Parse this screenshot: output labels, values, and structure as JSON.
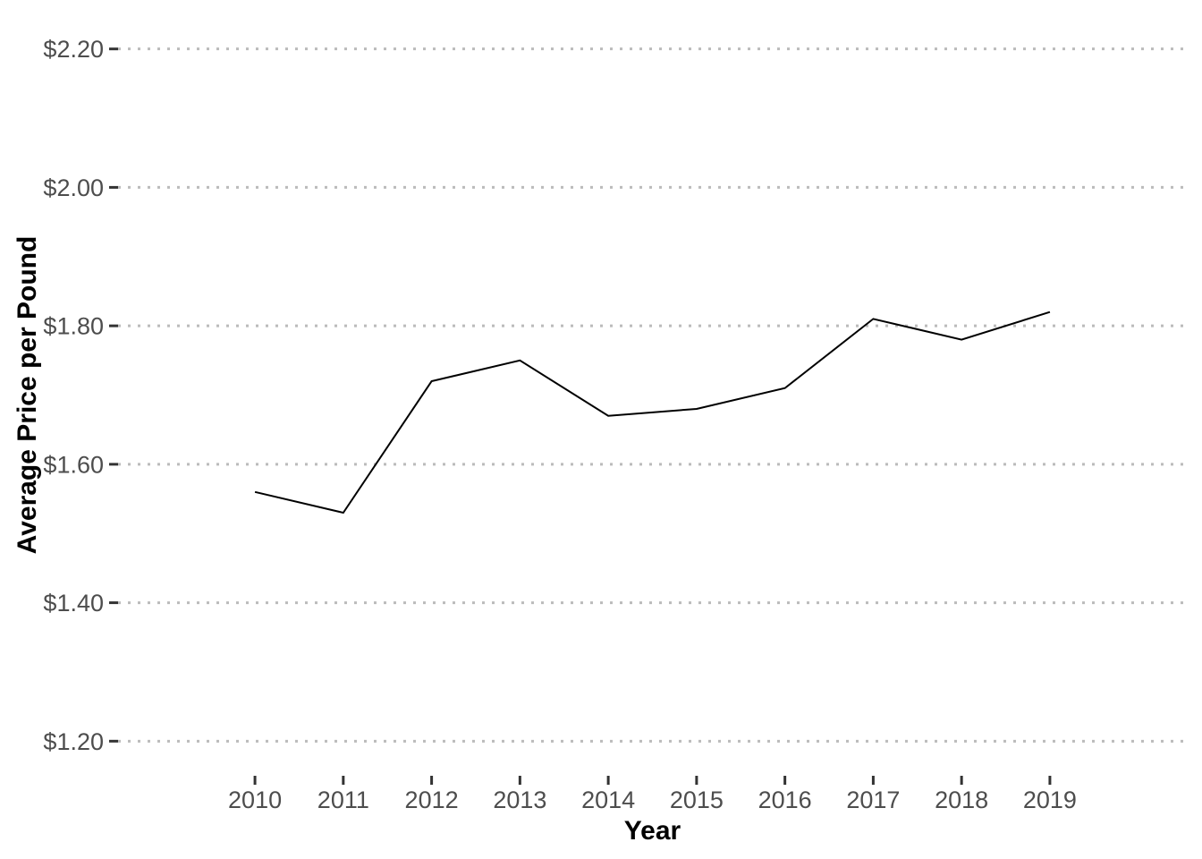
{
  "figure": {
    "background": "#FFFFFF"
  },
  "chart_data": {
    "type": "line",
    "title": "",
    "xlabel": "Year",
    "ylabel": "Average Price per Pound",
    "x": [
      2010,
      2011,
      2012,
      2013,
      2014,
      2015,
      2016,
      2017,
      2018,
      2019
    ],
    "series": [
      {
        "name": "Average Price per Pound",
        "values": [
          1.56,
          1.53,
          1.72,
          1.75,
          1.67,
          1.68,
          1.71,
          1.81,
          1.78,
          1.82
        ]
      }
    ],
    "x_ticks": [
      2010,
      2011,
      2012,
      2013,
      2014,
      2015,
      2016,
      2017,
      2018,
      2019
    ],
    "x_tick_labels": [
      "2010",
      "2011",
      "2012",
      "2013",
      "2014",
      "2015",
      "2016",
      "2017",
      "2018",
      "2019"
    ],
    "y_ticks": [
      1.2,
      1.4,
      1.6,
      1.8,
      2.0,
      2.2
    ],
    "y_tick_labels": [
      "$1.20",
      "$1.40",
      "$1.60",
      "$1.80",
      "$2.00",
      "$2.20"
    ],
    "xlim": [
      2008.45,
      2020.55
    ],
    "ylim": [
      1.15,
      2.25
    ],
    "grid": {
      "horizontal": "dotted",
      "vertical": "none"
    },
    "legend": "none",
    "colors": {
      "line": "#000000",
      "tick_label": "#4D4D4D",
      "axis_title": "#000000",
      "tick_mark": "#333333",
      "gridline": "#BBBBBB",
      "background": "#FFFFFF"
    }
  }
}
